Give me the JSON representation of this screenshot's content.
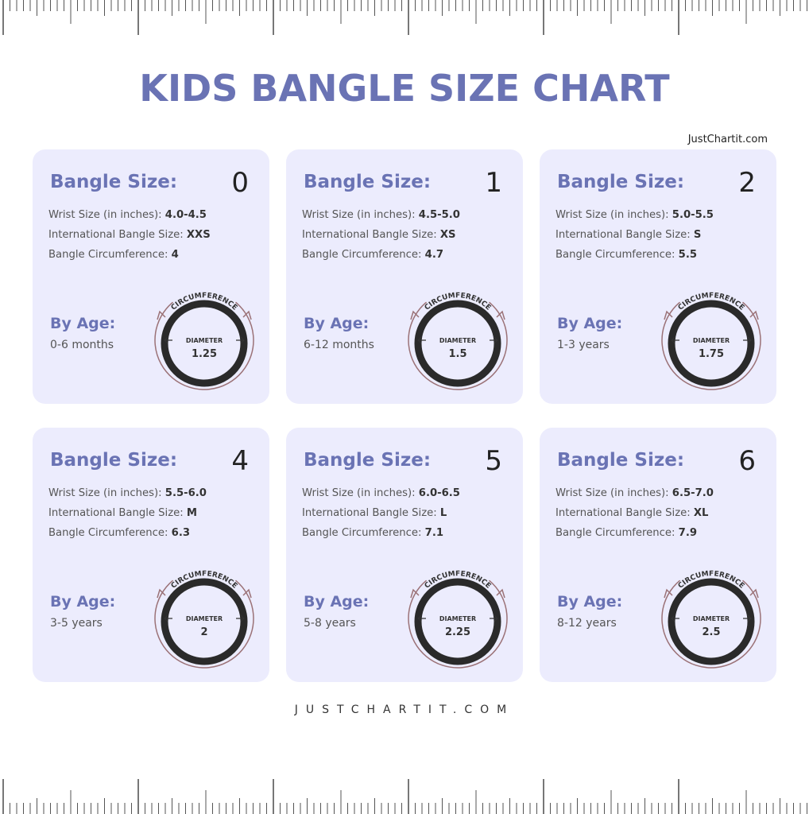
{
  "title": "KIDS BANGLE SIZE CHART",
  "brand_top": "JustChartit.com",
  "footer": "JUSTCHARTIT.COM",
  "labels": {
    "bangle_size": "Bangle Size:",
    "wrist_size": "Wrist Size (in inches): ",
    "international": "International Bangle Size: ",
    "circumference": "Bangle Circumference: ",
    "by_age": "By Age:",
    "circumference_arc": "CIRCUMFERENCE",
    "diameter": "DIAMETER"
  },
  "colors": {
    "title": "#6a73b4",
    "card_bg": "#ececfd",
    "bangle_ring": "#2a2a2a",
    "outer_arc": "#9b7277"
  },
  "cards": [
    {
      "size": "0",
      "wrist": "4.0-4.5",
      "intl": "XXS",
      "circ": "4",
      "age": "0-6 months",
      "diameter": "1.25"
    },
    {
      "size": "1",
      "wrist": "4.5-5.0",
      "intl": "XS",
      "circ": "4.7",
      "age": "6-12 months",
      "diameter": "1.5"
    },
    {
      "size": "2",
      "wrist": "5.0-5.5",
      "intl": "S",
      "circ": "5.5",
      "age": "1-3 years",
      "diameter": "1.75"
    },
    {
      "size": "4",
      "wrist": "5.5-6.0",
      "intl": "M",
      "circ": "6.3",
      "age": "3-5 years",
      "diameter": "2"
    },
    {
      "size": "5",
      "wrist": "6.0-6.5",
      "intl": "L",
      "circ": "7.1",
      "age": "5-8 years",
      "diameter": "2.25"
    },
    {
      "size": "6",
      "wrist": "6.5-7.0",
      "intl": "XL",
      "circ": "7.9",
      "age": "8-12 years",
      "diameter": "2.5"
    }
  ]
}
